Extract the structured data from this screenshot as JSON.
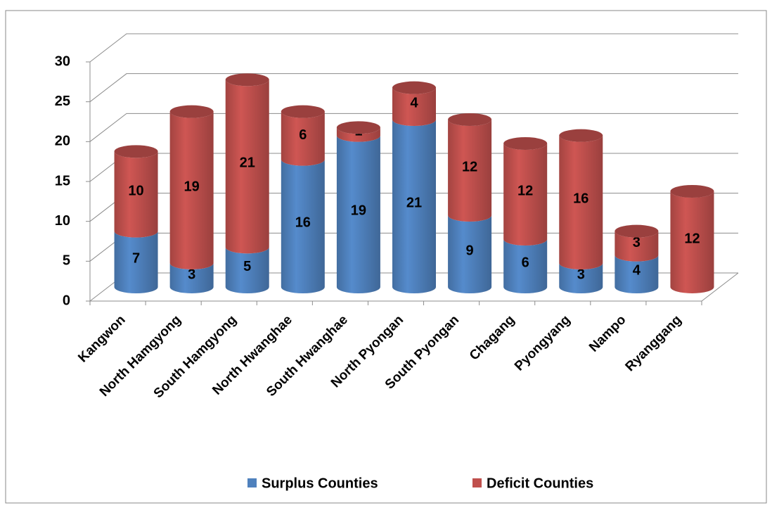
{
  "chart_data": {
    "type": "stacked-cylinder",
    "categories": [
      "Kangwon",
      "North Hamgyong",
      "South Hamgyong",
      "North Hwanghae",
      "South Hwanghae",
      "North Pyongan",
      "South Pyongan",
      "Chagang",
      "Pyongyang",
      "Nampo",
      "Ryanggang"
    ],
    "series": [
      {
        "name": "Surplus Counties",
        "color": "#4f81bd",
        "values": [
          7,
          3,
          5,
          16,
          19,
          21,
          9,
          6,
          3,
          4,
          null
        ]
      },
      {
        "name": "Deficit Counties",
        "color": "#c0504d",
        "values": [
          10,
          19,
          21,
          6,
          1,
          4,
          12,
          12,
          16,
          3,
          12
        ]
      }
    ],
    "ylim": [
      0,
      30
    ],
    "yticks": [
      0,
      5,
      10,
      15,
      20,
      25,
      30
    ],
    "grid": true,
    "legend": "bottom"
  }
}
